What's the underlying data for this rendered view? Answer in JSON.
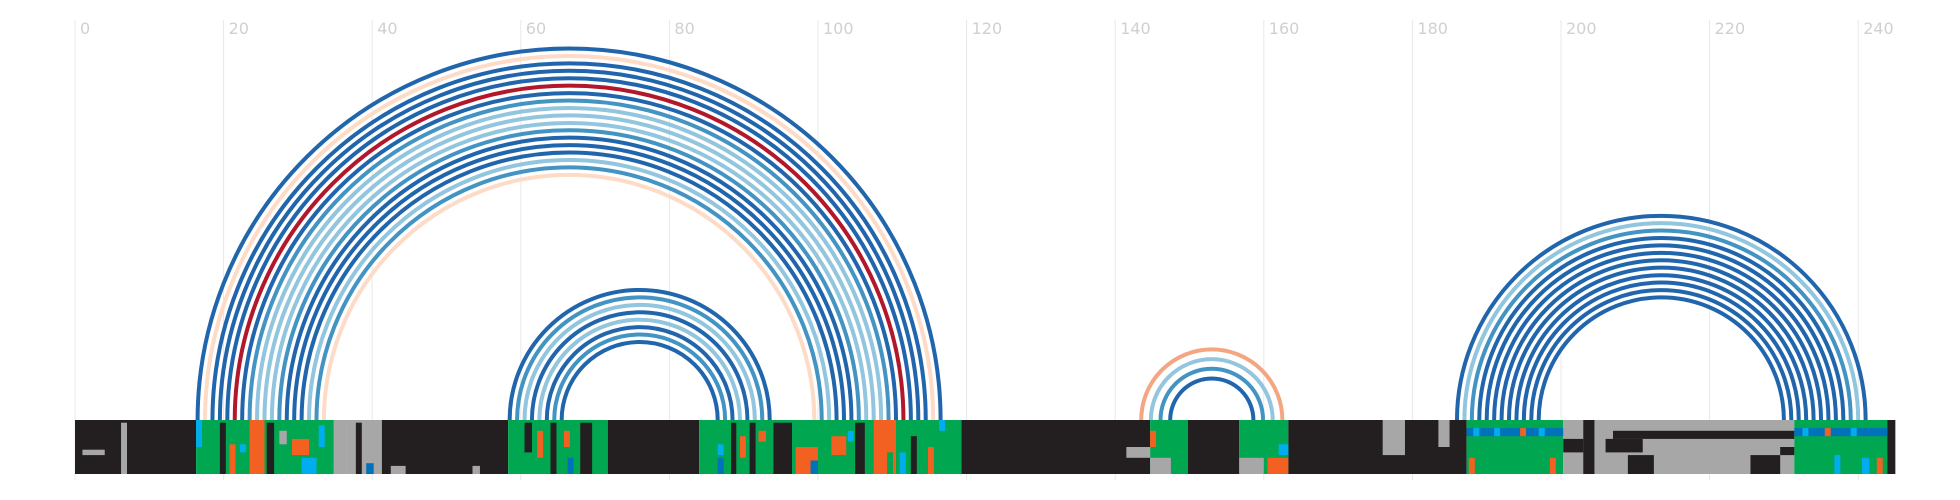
{
  "axis": {
    "ticks": [
      "0",
      "20",
      "40",
      "60",
      "80",
      "100",
      "120",
      "140",
      "160",
      "180",
      "200",
      "220",
      "240"
    ],
    "tick_values": [
      0,
      20,
      40,
      60,
      80,
      100,
      120,
      140,
      160,
      180,
      200,
      220,
      240
    ],
    "xlim": [
      0,
      245
    ]
  },
  "colors": {
    "background": "#ffffff",
    "grid": "#e8e8e8",
    "tick": "#d0d0d0",
    "track_dark": "#231f20",
    "gray": "#a7a7a7",
    "green": "#00a650",
    "orange": "#f26122",
    "cyan": "#00aeef",
    "blue": "#0072bc",
    "arc_dark_blue": "#2166ac",
    "arc_blue": "#4393c3",
    "arc_light_blue": "#92c5de",
    "arc_pale_peach": "#fddbc7",
    "arc_salmon": "#f4a582",
    "arc_red": "#b2182b"
  },
  "arc_groups": [
    {
      "x1": 16.5,
      "x2": 116.5,
      "count": 24,
      "step": 1,
      "colors": [
        "arc_dark_blue",
        "arc_pale_peach",
        "arc_dark_blue",
        "arc_dark_blue",
        "arc_dark_blue",
        "arc_red",
        "arc_dark_blue",
        "arc_blue",
        "arc_light_blue",
        "arc_light_blue",
        "arc_light_blue",
        "arc_blue",
        "arc_dark_blue",
        "arc_dark_blue",
        "arc_dark_blue",
        "arc_light_blue",
        "arc_blue",
        "arc_pale_peach"
      ]
    },
    {
      "x1": 58.5,
      "x2": 93.5,
      "count": 6,
      "step": 1,
      "colors": [
        "arc_dark_blue",
        "arc_blue",
        "arc_light_blue",
        "arc_dark_blue",
        "arc_light_blue",
        "arc_dark_blue",
        "arc_blue",
        "arc_dark_blue"
      ]
    },
    {
      "x1": 143.5,
      "x2": 162.5,
      "count": 4,
      "step": 1.3,
      "colors": [
        "arc_salmon",
        "arc_light_blue",
        "arc_blue",
        "arc_dark_blue"
      ]
    },
    {
      "x1": 186,
      "x2": 241,
      "count": 12,
      "step": 1,
      "colors": [
        "arc_dark_blue",
        "arc_light_blue",
        "arc_blue",
        "arc_dark_blue",
        "arc_dark_blue",
        "arc_dark_blue",
        "arc_dark_blue",
        "arc_dark_blue",
        "arc_dark_blue",
        "arc_dark_blue",
        "arc_dark_blue",
        "arc_dark_blue"
      ]
    }
  ],
  "track_segments": [
    {
      "x1": 0,
      "x2": 16.3,
      "color": "track_dark"
    },
    {
      "x1": 16.3,
      "x2": 36.5,
      "color": "green"
    },
    {
      "x1": 36.5,
      "x2": 41.3,
      "color": "gray"
    },
    {
      "x1": 41.3,
      "x2": 58.3,
      "color": "track_dark"
    },
    {
      "x1": 58.3,
      "x2": 71.7,
      "color": "green"
    },
    {
      "x1": 71.7,
      "x2": 84,
      "color": "track_dark"
    },
    {
      "x1": 84,
      "x2": 119.3,
      "color": "green"
    },
    {
      "x1": 119.3,
      "x2": 144.7,
      "color": "track_dark"
    },
    {
      "x1": 144.7,
      "x2": 149.8,
      "color": "green"
    },
    {
      "x1": 149.8,
      "x2": 156.7,
      "color": "track_dark"
    },
    {
      "x1": 156.7,
      "x2": 163.3,
      "color": "green"
    },
    {
      "x1": 163.3,
      "x2": 187.3,
      "color": "track_dark"
    },
    {
      "x1": 187.3,
      "x2": 200.3,
      "color": "green"
    },
    {
      "x1": 200.3,
      "x2": 231.4,
      "color": "gray"
    },
    {
      "x1": 231.4,
      "x2": 243.9,
      "color": "green"
    },
    {
      "x1": 243.9,
      "x2": 245,
      "color": "track_dark"
    }
  ],
  "track_patches": [
    {
      "x1": 1,
      "x2": 4,
      "r1": 0.55,
      "r2": 0.65,
      "color": "gray"
    },
    {
      "x1": 6.2,
      "x2": 7,
      "r1": 0.05,
      "r2": 1.0,
      "color": "gray"
    },
    {
      "x1": 16.3,
      "x2": 17.1,
      "r1": 0.0,
      "r2": 0.5,
      "color": "cyan"
    },
    {
      "x1": 19.5,
      "x2": 20.3,
      "r1": 0.05,
      "r2": 1.0,
      "color": "track_dark"
    },
    {
      "x1": 20.8,
      "x2": 21.6,
      "r1": 0.45,
      "r2": 1.0,
      "color": "orange"
    },
    {
      "x1": 22.2,
      "x2": 23,
      "r1": 0.45,
      "r2": 0.6,
      "color": "cyan"
    },
    {
      "x1": 23.5,
      "x2": 25.5,
      "r1": 0.0,
      "r2": 1.0,
      "color": "orange"
    },
    {
      "x1": 25.8,
      "x2": 26.8,
      "r1": 0.05,
      "r2": 1.0,
      "color": "track_dark"
    },
    {
      "x1": 27.5,
      "x2": 28.5,
      "r1": 0.2,
      "r2": 0.45,
      "color": "gray"
    },
    {
      "x1": 29.2,
      "x2": 31.5,
      "r1": 0.35,
      "r2": 0.65,
      "color": "orange"
    },
    {
      "x1": 30.5,
      "x2": 32.5,
      "r1": 0.7,
      "r2": 1.0,
      "color": "cyan"
    },
    {
      "x1": 32.8,
      "x2": 33.6,
      "r1": 0.1,
      "r2": 0.5,
      "color": "cyan"
    },
    {
      "x1": 34.8,
      "x2": 36.5,
      "r1": 0.0,
      "r2": 1.0,
      "color": "gray"
    },
    {
      "x1": 37.8,
      "x2": 38.6,
      "r1": 0.05,
      "r2": 1.0,
      "color": "track_dark"
    },
    {
      "x1": 39.2,
      "x2": 40.2,
      "r1": 0.8,
      "r2": 1.0,
      "color": "blue"
    },
    {
      "x1": 42.5,
      "x2": 44.5,
      "r1": 0.85,
      "r2": 1.0,
      "color": "gray"
    },
    {
      "x1": 53.5,
      "x2": 54.5,
      "r1": 0.85,
      "r2": 1.0,
      "color": "gray"
    },
    {
      "x1": 60.5,
      "x2": 61.5,
      "r1": 0.05,
      "r2": 0.6,
      "color": "track_dark"
    },
    {
      "x1": 62.2,
      "x2": 63,
      "r1": 0.2,
      "r2": 0.7,
      "color": "orange"
    },
    {
      "x1": 64,
      "x2": 64.8,
      "r1": 0.05,
      "r2": 1.0,
      "color": "track_dark"
    },
    {
      "x1": 65.8,
      "x2": 66.6,
      "r1": 0.2,
      "r2": 0.5,
      "color": "orange"
    },
    {
      "x1": 66.3,
      "x2": 67.1,
      "r1": 0.7,
      "r2": 1.0,
      "color": "blue"
    },
    {
      "x1": 68,
      "x2": 69.6,
      "r1": 0.05,
      "r2": 1.0,
      "color": "track_dark"
    },
    {
      "x1": 86.5,
      "x2": 87.3,
      "r1": 0.45,
      "r2": 0.65,
      "color": "cyan"
    },
    {
      "x1": 86.5,
      "x2": 87.3,
      "r1": 0.7,
      "r2": 1.0,
      "color": "blue"
    },
    {
      "x1": 88.3,
      "x2": 89,
      "r1": 0.05,
      "r2": 1.0,
      "color": "track_dark"
    },
    {
      "x1": 89.5,
      "x2": 90.3,
      "r1": 0.3,
      "r2": 0.7,
      "color": "orange"
    },
    {
      "x1": 90.8,
      "x2": 91.6,
      "r1": 0.05,
      "r2": 1.0,
      "color": "track_dark"
    },
    {
      "x1": 92,
      "x2": 93,
      "r1": 0.2,
      "r2": 0.4,
      "color": "orange"
    },
    {
      "x1": 94,
      "x2": 96.5,
      "r1": 0.05,
      "r2": 1.0,
      "color": "track_dark"
    },
    {
      "x1": 97,
      "x2": 100,
      "r1": 0.5,
      "r2": 1.0,
      "color": "orange"
    },
    {
      "x1": 99,
      "x2": 100,
      "r1": 0.75,
      "r2": 1.0,
      "color": "blue"
    },
    {
      "x1": 101.8,
      "x2": 103.8,
      "r1": 0.3,
      "r2": 0.65,
      "color": "orange"
    },
    {
      "x1": 104,
      "x2": 104.8,
      "r1": 0.2,
      "r2": 0.4,
      "color": "cyan"
    },
    {
      "x1": 105,
      "x2": 106.3,
      "r1": 0.05,
      "r2": 1.0,
      "color": "track_dark"
    },
    {
      "x1": 107.5,
      "x2": 110.5,
      "r1": 0.0,
      "r2": 1.0,
      "color": "orange"
    },
    {
      "x1": 109.3,
      "x2": 110.1,
      "r1": 0.6,
      "r2": 1.0,
      "color": "green"
    },
    {
      "x1": 111,
      "x2": 111.8,
      "r1": 0.6,
      "r2": 1.0,
      "color": "cyan"
    },
    {
      "x1": 112.5,
      "x2": 113.3,
      "r1": 0.3,
      "r2": 1.0,
      "color": "track_dark"
    },
    {
      "x1": 114.8,
      "x2": 115.6,
      "r1": 0.5,
      "r2": 1.0,
      "color": "orange"
    },
    {
      "x1": 116.3,
      "x2": 117.1,
      "r1": 0.0,
      "r2": 0.2,
      "color": "cyan"
    },
    {
      "x1": 141.5,
      "x2": 144.7,
      "r1": 0.5,
      "r2": 0.7,
      "color": "gray"
    },
    {
      "x1": 144.7,
      "x2": 147.5,
      "r1": 0.7,
      "r2": 1.0,
      "color": "gray"
    },
    {
      "x1": 144.7,
      "x2": 145.5,
      "r1": 0.2,
      "r2": 0.5,
      "color": "orange"
    },
    {
      "x1": 156.7,
      "x2": 160,
      "r1": 0.7,
      "r2": 1.0,
      "color": "gray"
    },
    {
      "x1": 160.5,
      "x2": 163.3,
      "r1": 0.7,
      "r2": 1.0,
      "color": "orange"
    },
    {
      "x1": 162,
      "x2": 163.3,
      "r1": 0.45,
      "r2": 0.65,
      "color": "cyan"
    },
    {
      "x1": 176,
      "x2": 179,
      "r1": 0.0,
      "r2": 0.65,
      "color": "gray"
    },
    {
      "x1": 183.5,
      "x2": 185,
      "r1": 0.0,
      "r2": 0.5,
      "color": "gray"
    },
    {
      "x1": 187.3,
      "x2": 200.3,
      "r1": 0.15,
      "r2": 0.3,
      "color": "blue"
    },
    {
      "x1": 188.2,
      "x2": 189,
      "r1": 0.15,
      "r2": 0.3,
      "color": "cyan"
    },
    {
      "x1": 191,
      "x2": 191.8,
      "r1": 0.15,
      "r2": 0.3,
      "color": "cyan"
    },
    {
      "x1": 194.5,
      "x2": 195.3,
      "r1": 0.15,
      "r2": 0.3,
      "color": "orange"
    },
    {
      "x1": 197,
      "x2": 197.8,
      "r1": 0.15,
      "r2": 0.3,
      "color": "cyan"
    },
    {
      "x1": 187.6,
      "x2": 188.4,
      "r1": 0.7,
      "r2": 1.0,
      "color": "orange"
    },
    {
      "x1": 198.5,
      "x2": 199.3,
      "r1": 0.7,
      "r2": 1.0,
      "color": "orange"
    },
    {
      "x1": 200.3,
      "x2": 203,
      "r1": 0.35,
      "r2": 0.6,
      "color": "track_dark"
    },
    {
      "x1": 203,
      "x2": 204.5,
      "r1": 0.0,
      "r2": 1.0,
      "color": "track_dark"
    },
    {
      "x1": 206,
      "x2": 211,
      "r1": 0.35,
      "r2": 0.6,
      "color": "track_dark"
    },
    {
      "x1": 207,
      "x2": 231.4,
      "r1": 0.2,
      "r2": 0.35,
      "color": "track_dark"
    },
    {
      "x1": 209,
      "x2": 212.5,
      "r1": 0.65,
      "r2": 1.0,
      "color": "track_dark"
    },
    {
      "x1": 225.5,
      "x2": 229.5,
      "r1": 0.65,
      "r2": 1.0,
      "color": "track_dark"
    },
    {
      "x1": 229.5,
      "x2": 231.4,
      "r1": 0.5,
      "r2": 0.65,
      "color": "track_dark"
    },
    {
      "x1": 231.4,
      "x2": 243.9,
      "r1": 0.15,
      "r2": 0.3,
      "color": "blue"
    },
    {
      "x1": 232.5,
      "x2": 233.3,
      "r1": 0.15,
      "r2": 0.3,
      "color": "cyan"
    },
    {
      "x1": 235.5,
      "x2": 236.3,
      "r1": 0.15,
      "r2": 0.3,
      "color": "orange"
    },
    {
      "x1": 239,
      "x2": 239.8,
      "r1": 0.15,
      "r2": 0.3,
      "color": "cyan"
    },
    {
      "x1": 236.8,
      "x2": 237.6,
      "r1": 0.65,
      "r2": 1.0,
      "color": "cyan"
    },
    {
      "x1": 240.5,
      "x2": 241.5,
      "r1": 0.7,
      "r2": 1.0,
      "color": "cyan"
    },
    {
      "x1": 242.5,
      "x2": 243.3,
      "r1": 0.7,
      "r2": 1.0,
      "color": "orange"
    }
  ]
}
